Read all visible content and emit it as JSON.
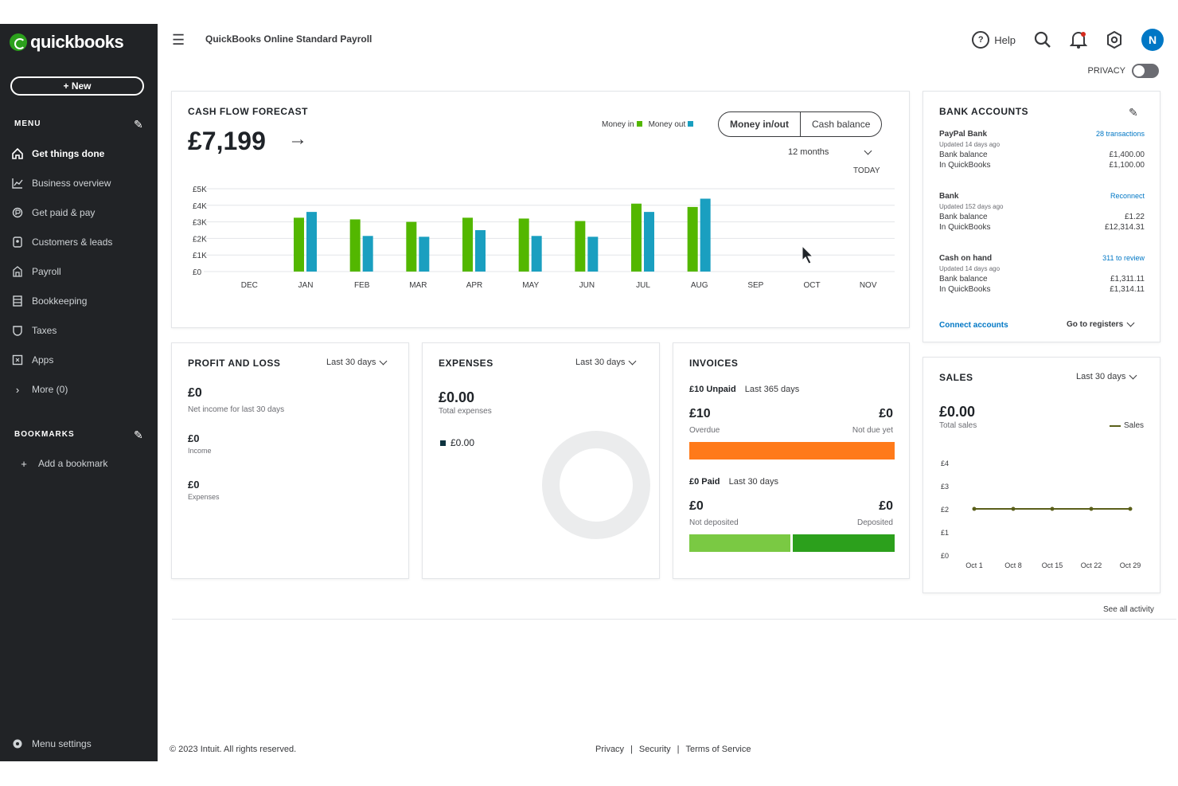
{
  "sidebar": {
    "brand": "quickbooks",
    "new_label": "+ New",
    "menu_heading": "MENU",
    "items": [
      {
        "label": "Get things done",
        "icon": "home-icon"
      },
      {
        "label": "Business overview",
        "icon": "chart-icon"
      },
      {
        "label": "Get paid & pay",
        "icon": "payments-icon"
      },
      {
        "label": "Customers & leads",
        "icon": "customers-icon"
      },
      {
        "label": "Payroll",
        "icon": "payroll-icon"
      },
      {
        "label": "Bookkeeping",
        "icon": "bookkeeping-icon"
      },
      {
        "label": "Taxes",
        "icon": "taxes-icon"
      },
      {
        "label": "Apps",
        "icon": "apps-icon"
      },
      {
        "label": "More (0)",
        "icon": "chevron-right-icon"
      }
    ],
    "bookmarks_heading": "BOOKMARKS",
    "add_bookmark": "Add a bookmark",
    "menu_settings": "Menu settings"
  },
  "topbar": {
    "company": "QuickBooks Online Standard Payroll",
    "help": "Help",
    "avatar": "N",
    "privacy": "PRIVACY"
  },
  "cashflow": {
    "title": "CASH FLOW FORECAST",
    "amount": "£7,199",
    "legend_in": "Money in",
    "legend_out": "Money out",
    "tab_active": "Money in/out",
    "tab_other": "Cash balance",
    "months_select": "12 months",
    "today": "TODAY",
    "color_in": "#53b700",
    "color_out": "#1a9fc0"
  },
  "chart_data": {
    "type": "bar",
    "categories": [
      "DEC",
      "JAN",
      "FEB",
      "MAR",
      "APR",
      "MAY",
      "JUN",
      "JUL",
      "AUG",
      "SEP",
      "OCT",
      "NOV"
    ],
    "series": [
      {
        "name": "Money in",
        "values": [
          null,
          65,
          63,
          60,
          65,
          64,
          61,
          82,
          78,
          null,
          null,
          null
        ]
      },
      {
        "name": "Money out",
        "values": [
          null,
          72,
          43,
          42,
          50,
          43,
          42,
          72,
          88,
          null,
          null,
          null
        ]
      }
    ],
    "ylim": [
      0,
      100
    ],
    "yticks": [
      "£0",
      "£1K",
      "£2K",
      "£3K",
      "£4K",
      "£5K"
    ],
    "grid": true
  },
  "pnl": {
    "title": "PROFIT AND LOSS",
    "period": "Last 30 days",
    "net": "£0",
    "net_label": "Net income for last 30 days",
    "income": "£0",
    "income_label": "Income",
    "expenses": "£0",
    "expenses_label": "Expenses"
  },
  "expenses": {
    "title": "EXPENSES",
    "period": "Last 30 days",
    "amount": "£0.00",
    "label": "Total expenses",
    "legend": "£0.00"
  },
  "invoices": {
    "title": "INVOICES",
    "unpaid_label": "£10 Unpaid",
    "unpaid_period": "Last 365 days",
    "overdue": "£10",
    "overdue_label": "Overdue",
    "notdue": "£0",
    "notdue_label": "Not due yet",
    "paid_label": "£0 Paid",
    "paid_period": "Last 30 days",
    "notdeposited": "£0",
    "notdeposited_label": "Not deposited",
    "deposited": "£0",
    "deposited_label": "Deposited"
  },
  "bank": {
    "title": "BANK ACCOUNTS",
    "accounts": [
      {
        "name": "PayPal Bank",
        "status": "28 transactions",
        "updated": "Updated 14 days ago",
        "bank_label": "Bank balance",
        "bank_value": "£1,400.00",
        "qb_label": "In QuickBooks",
        "qb_value": "£1,100.00"
      },
      {
        "name": "Bank",
        "status": "Reconnect",
        "updated": "Updated 152 days ago",
        "bank_label": "Bank balance",
        "bank_value": "£1.22",
        "qb_label": "In QuickBooks",
        "qb_value": "£12,314.31"
      },
      {
        "name": "Cash on hand",
        "status": "311 to review",
        "updated": "Updated 14 days ago",
        "bank_label": "Bank balance",
        "bank_value": "£1,311.11",
        "qb_label": "In QuickBooks",
        "qb_value": "£1,314.11"
      }
    ],
    "connect": "Connect accounts",
    "goto": "Go to registers"
  },
  "sales": {
    "title": "SALES",
    "period": "Last 30 days",
    "amount": "£0.00",
    "label": "Total sales",
    "legend": "Sales",
    "yticks": [
      "£4",
      "£3",
      "£2",
      "£1",
      "£0"
    ],
    "xticks": [
      "Oct 1",
      "Oct 8",
      "Oct 15",
      "Oct 22",
      "Oct 29"
    ]
  },
  "see_all": "See all activity",
  "footer": {
    "copyright": "© 2023 Intuit. All rights reserved.",
    "links": [
      "Privacy",
      "Security",
      "Terms of Service"
    ]
  }
}
